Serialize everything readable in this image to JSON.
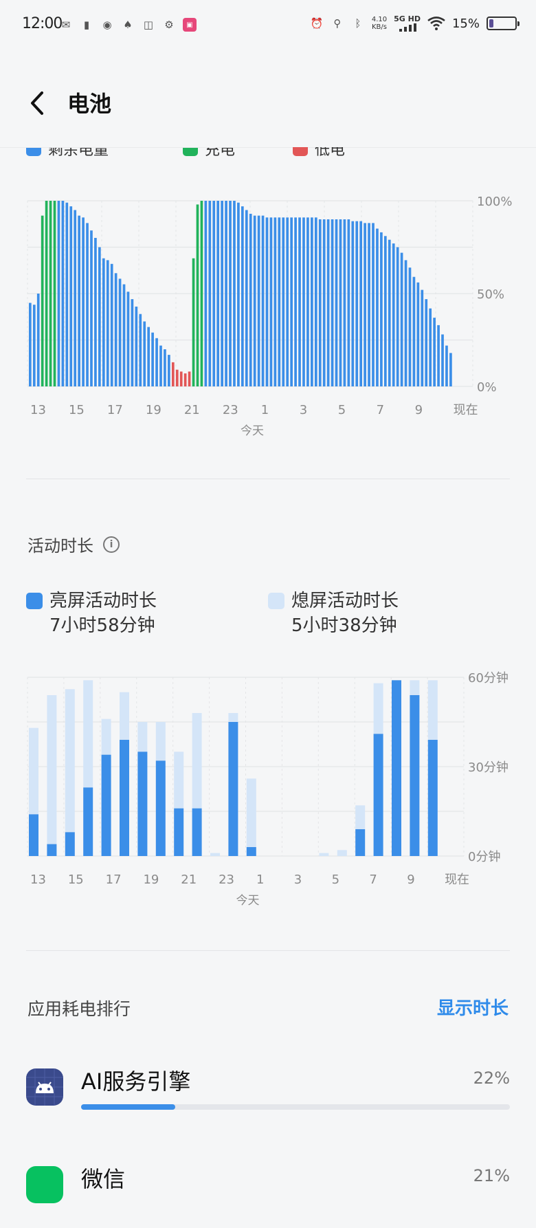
{
  "status_bar": {
    "time": "12:00",
    "net_speed": "4.10",
    "net_unit": "KB/s",
    "net_type": "5G HD",
    "battery_text": "15%",
    "battery_level": 0.15,
    "left_icons": [
      "message-icon",
      "battery-small-icon",
      "app-icon",
      "notification-icon",
      "mi-icon",
      "settings-icon",
      "app-pink-icon"
    ],
    "right_icons": [
      "alarm-icon",
      "location-icon",
      "bluetooth-icon",
      "signal-icon",
      "wifi-icon"
    ]
  },
  "header": {
    "title": "电池"
  },
  "battery_chart_legend": [
    {
      "label": "剩余电量",
      "color": "#3b8ee8"
    },
    {
      "label": "充电",
      "color": "#21b35b"
    },
    {
      "label": "低电",
      "color": "#e25656"
    }
  ],
  "chart_data": [
    {
      "type": "bar",
      "title": "",
      "xlabel": "今天",
      "y_tick_labels": [
        "100%",
        "50%",
        "0%"
      ],
      "ylim": [
        0,
        100
      ],
      "x_tick_labels": [
        "13",
        "15",
        "17",
        "19",
        "21",
        "23",
        "1",
        "3",
        "5",
        "7",
        "9",
        "现在"
      ],
      "values": [
        45,
        44,
        50,
        92,
        100,
        100,
        100,
        100,
        100,
        99,
        97,
        95,
        92,
        91,
        88,
        84,
        80,
        75,
        69,
        68,
        66,
        61,
        58,
        55,
        51,
        47,
        43,
        39,
        35,
        32,
        29,
        26,
        22,
        20,
        17,
        13,
        9,
        8,
        7,
        8,
        69,
        98,
        100,
        100,
        100,
        100,
        100,
        100,
        100,
        100,
        100,
        99,
        97,
        95,
        93,
        92,
        92,
        92,
        91,
        91,
        91,
        91,
        91,
        91,
        91,
        91,
        91,
        91,
        91,
        91,
        91,
        90,
        90,
        90,
        90,
        90,
        90,
        90,
        90,
        89,
        89,
        89,
        88,
        88,
        88,
        85,
        83,
        81,
        79,
        77,
        75,
        72,
        68,
        64,
        59,
        56,
        52,
        47,
        42,
        37,
        33,
        28,
        22,
        18
      ],
      "series_status": "charging at indices 3-6 and 40-42, low battery at indices 35-39, remaining otherwise",
      "colors": {
        "remaining": "#3b8ee8",
        "charging": "#21b35b",
        "low": "#e25656"
      },
      "grid": true
    },
    {
      "type": "bar",
      "stacked": true,
      "title": "",
      "xlabel": "今天",
      "y_tick_labels": [
        "60分钟",
        "30分钟",
        "0分钟"
      ],
      "ylim": [
        0,
        60
      ],
      "x_tick_labels": [
        "13",
        "15",
        "17",
        "19",
        "21",
        "23",
        "1",
        "3",
        "5",
        "7",
        "9",
        "现在"
      ],
      "series": [
        {
          "name": "亮屏活动时长",
          "values": [
            14,
            4,
            8,
            23,
            34,
            39,
            35,
            32,
            16,
            16,
            0,
            45,
            3,
            0,
            0,
            0,
            0,
            0,
            9,
            41,
            59,
            54,
            39
          ]
        },
        {
          "name": "熄屏活动时长",
          "values": [
            29,
            50,
            48,
            36,
            12,
            16,
            10,
            13,
            19,
            32,
            1,
            3,
            23,
            0,
            0,
            0,
            1,
            2,
            8,
            17,
            0,
            5,
            20
          ]
        }
      ],
      "colors": {
        "on": "#3b8ee8",
        "off": "#d4e5f8"
      },
      "grid": true
    }
  ],
  "activity": {
    "title": "活动时长",
    "info_icon": "info-icon",
    "screen_on_label": "亮屏活动时长",
    "screen_on_value": "7小时58分钟",
    "screen_off_label": "熄屏活动时长",
    "screen_off_value": "5小时38分钟"
  },
  "ranking": {
    "title": "应用耗电排行",
    "toggle_label": "显示时长",
    "apps": [
      {
        "name": "AI服务引擎",
        "percent": "22%",
        "share": 0.22,
        "icon": "android-icon"
      },
      {
        "name": "微信",
        "percent": "21%",
        "share": 0.21,
        "icon": "wechat-icon"
      }
    ]
  }
}
